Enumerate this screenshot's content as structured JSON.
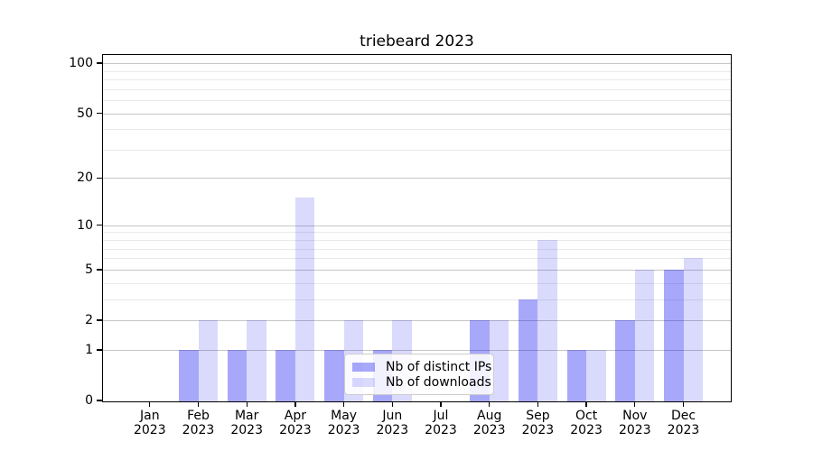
{
  "title": "triebeard 2023",
  "chart_data": {
    "type": "bar",
    "title": "triebeard 2023",
    "categories": [
      "Jan 2023",
      "Feb 2023",
      "Mar 2023",
      "Apr 2023",
      "May 2023",
      "Jun 2023",
      "Jul 2023",
      "Aug 2023",
      "Sep 2023",
      "Oct 2023",
      "Nov 2023",
      "Dec 2023"
    ],
    "months": [
      "Jan",
      "Feb",
      "Mar",
      "Apr",
      "May",
      "Jun",
      "Jul",
      "Aug",
      "Sep",
      "Oct",
      "Nov",
      "Dec"
    ],
    "year": "2023",
    "series": [
      {
        "name": "Nb of distinct IPs",
        "color": "rgba(0,0,240,0.34)",
        "values": [
          0,
          1,
          1,
          1,
          1,
          1,
          0,
          2,
          3,
          1,
          2,
          5
        ]
      },
      {
        "name": "Nb of downloads",
        "color": "rgba(0,0,240,0.145)",
        "values": [
          0,
          2,
          2,
          15,
          2,
          2,
          0,
          2,
          8,
          1,
          5,
          6
        ]
      }
    ],
    "xlabel": "",
    "ylabel": "",
    "yscale": "log1p",
    "ylim": [
      0,
      113
    ],
    "y_major_ticks": [
      0,
      1,
      2,
      5,
      10,
      20,
      50,
      100
    ],
    "y_minor_ticks": [
      3,
      4,
      6,
      7,
      8,
      9,
      30,
      40,
      60,
      70,
      80,
      90
    ],
    "grid": true,
    "legend_position": "lower center"
  },
  "legend": {
    "items": [
      {
        "label": "Nb of distinct IPs"
      },
      {
        "label": "Nb of downloads"
      }
    ]
  }
}
